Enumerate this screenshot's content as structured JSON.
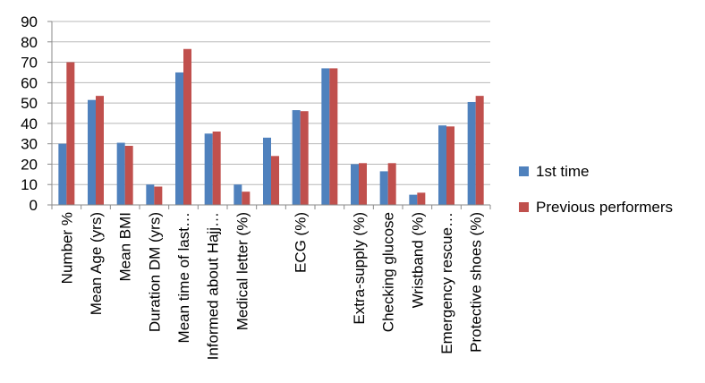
{
  "chart_data": {
    "type": "bar",
    "title": "",
    "xlabel": "",
    "ylabel": "",
    "ylim": [
      0,
      90
    ],
    "yticks": [
      0,
      10,
      20,
      30,
      40,
      50,
      60,
      70,
      80,
      90
    ],
    "grid": "horizontal",
    "legend_position": "right",
    "categories": [
      "Number %",
      "Mean Age (yrs)",
      "Mean BMI",
      "Duration DM (yrs)",
      "Mean time of last…",
      "Informed about Hajj…",
      "Medical letter (%)",
      "",
      "ECG (%)",
      "",
      "Extra-supply (%)",
      "Checking  glucose",
      "Wristband (%)",
      "Emergency rescue…",
      "Protective shoes (%)"
    ],
    "series": [
      {
        "name": "1st time",
        "color": "#4F81BD",
        "values": [
          30,
          51.5,
          30.5,
          10,
          65,
          35,
          10,
          33,
          46.5,
          67,
          20,
          16.5,
          5,
          39,
          50.5
        ]
      },
      {
        "name": "Previous performers",
        "color": "#C0504D",
        "values": [
          70,
          53.5,
          29,
          9,
          76.5,
          36,
          6.5,
          24,
          46,
          67,
          20.5,
          20.5,
          6,
          38.5,
          53.5
        ]
      }
    ]
  }
}
